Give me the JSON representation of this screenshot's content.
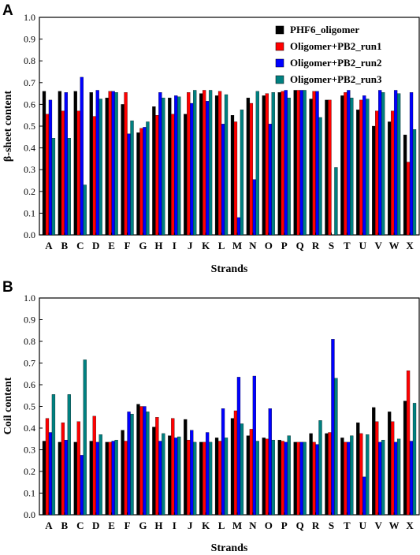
{
  "figure": {
    "panels": [
      "A",
      "B"
    ]
  },
  "chart_data": [
    {
      "type": "bar",
      "panel": "A",
      "xlabel": "Strands",
      "ylabel": "β-sheet content",
      "ylim": [
        0,
        1.0
      ],
      "yticks": [
        "0.0",
        "0.1",
        "0.2",
        "0.3",
        "0.4",
        "0.5",
        "0.6",
        "0.7",
        "0.8",
        "0.9",
        "1.0"
      ],
      "categories": [
        "A",
        "B",
        "C",
        "D",
        "E",
        "F",
        "G",
        "H",
        "I",
        "J",
        "K",
        "L",
        "M",
        "N",
        "O",
        "P",
        "Q",
        "R",
        "S",
        "T",
        "U",
        "V",
        "W",
        "X"
      ],
      "legend_position": "top-right",
      "series": [
        {
          "name": "PHF6_oligomer",
          "color": "#000000",
          "values": [
            0.66,
            0.66,
            0.66,
            0.655,
            0.63,
            0.6,
            0.47,
            0.59,
            0.63,
            0.555,
            0.65,
            0.64,
            0.55,
            0.63,
            0.64,
            0.655,
            0.665,
            0.625,
            0.62,
            0.64,
            0.575,
            0.5,
            0.52,
            0.46
          ]
        },
        {
          "name": "Oligomer+PB2_run1",
          "color": "#ff0000",
          "values": [
            0.555,
            0.57,
            0.57,
            0.545,
            0.66,
            0.655,
            0.49,
            0.55,
            0.555,
            0.655,
            0.665,
            0.66,
            0.52,
            0.605,
            0.65,
            0.66,
            0.665,
            0.66,
            0.62,
            0.655,
            0.62,
            0.57,
            0.57,
            0.335
          ]
        },
        {
          "name": "Oligomer+PB2_run2",
          "color": "#0000ff",
          "values": [
            0.62,
            0.655,
            0.725,
            0.665,
            0.66,
            0.465,
            0.495,
            0.655,
            0.64,
            0.605,
            0.615,
            0.51,
            0.08,
            0.255,
            0.51,
            0.665,
            0.665,
            0.66,
            0.0,
            0.665,
            0.64,
            0.665,
            0.665,
            0.655
          ]
        },
        {
          "name": "Oligomer+PB2_run3",
          "color": "#008080",
          "values": [
            0.445,
            0.445,
            0.23,
            0.625,
            0.655,
            0.525,
            0.52,
            0.63,
            0.635,
            0.665,
            0.665,
            0.645,
            0.575,
            0.66,
            0.655,
            0.63,
            0.665,
            0.54,
            0.31,
            0.63,
            0.625,
            0.655,
            0.65,
            0.485
          ]
        }
      ]
    },
    {
      "type": "bar",
      "panel": "B",
      "xlabel": "Strands",
      "ylabel": "Coil content",
      "ylim": [
        0,
        1.0
      ],
      "yticks": [
        "0.0",
        "0.1",
        "0.2",
        "0.3",
        "0.4",
        "0.5",
        "0.6",
        "0.7",
        "0.8",
        "0.9",
        "1.0"
      ],
      "categories": [
        "A",
        "B",
        "C",
        "D",
        "E",
        "F",
        "G",
        "H",
        "I",
        "J",
        "K",
        "L",
        "M",
        "N",
        "O",
        "P",
        "Q",
        "R",
        "S",
        "T",
        "U",
        "V",
        "W",
        "X"
      ],
      "series": [
        {
          "name": "PHF6_oligomer",
          "color": "#000000",
          "values": [
            0.34,
            0.335,
            0.335,
            0.34,
            0.335,
            0.39,
            0.51,
            0.405,
            0.365,
            0.44,
            0.335,
            0.355,
            0.445,
            0.365,
            0.355,
            0.345,
            0.335,
            0.375,
            0.375,
            0.355,
            0.425,
            0.495,
            0.475,
            0.525
          ]
        },
        {
          "name": "Oligomer+PB2_run1",
          "color": "#ff0000",
          "values": [
            0.445,
            0.425,
            0.43,
            0.455,
            0.335,
            0.34,
            0.5,
            0.45,
            0.445,
            0.345,
            0.335,
            0.34,
            0.48,
            0.395,
            0.35,
            0.34,
            0.335,
            0.335,
            0.38,
            0.335,
            0.375,
            0.43,
            0.43,
            0.665
          ]
        },
        {
          "name": "Oligomer+PB2_run2",
          "color": "#0000ff",
          "values": [
            0.38,
            0.345,
            0.275,
            0.335,
            0.34,
            0.475,
            0.5,
            0.34,
            0.355,
            0.39,
            0.38,
            0.49,
            0.635,
            0.64,
            0.49,
            0.335,
            0.335,
            0.325,
            0.81,
            0.335,
            0.175,
            0.335,
            0.335,
            0.34
          ]
        },
        {
          "name": "Oligomer+PB2_run3",
          "color": "#008080",
          "values": [
            0.555,
            0.555,
            0.715,
            0.37,
            0.345,
            0.465,
            0.475,
            0.375,
            0.36,
            0.335,
            0.335,
            0.355,
            0.42,
            0.34,
            0.345,
            0.365,
            0.335,
            0.435,
            0.63,
            0.365,
            0.37,
            0.345,
            0.35,
            0.515
          ]
        }
      ]
    }
  ]
}
